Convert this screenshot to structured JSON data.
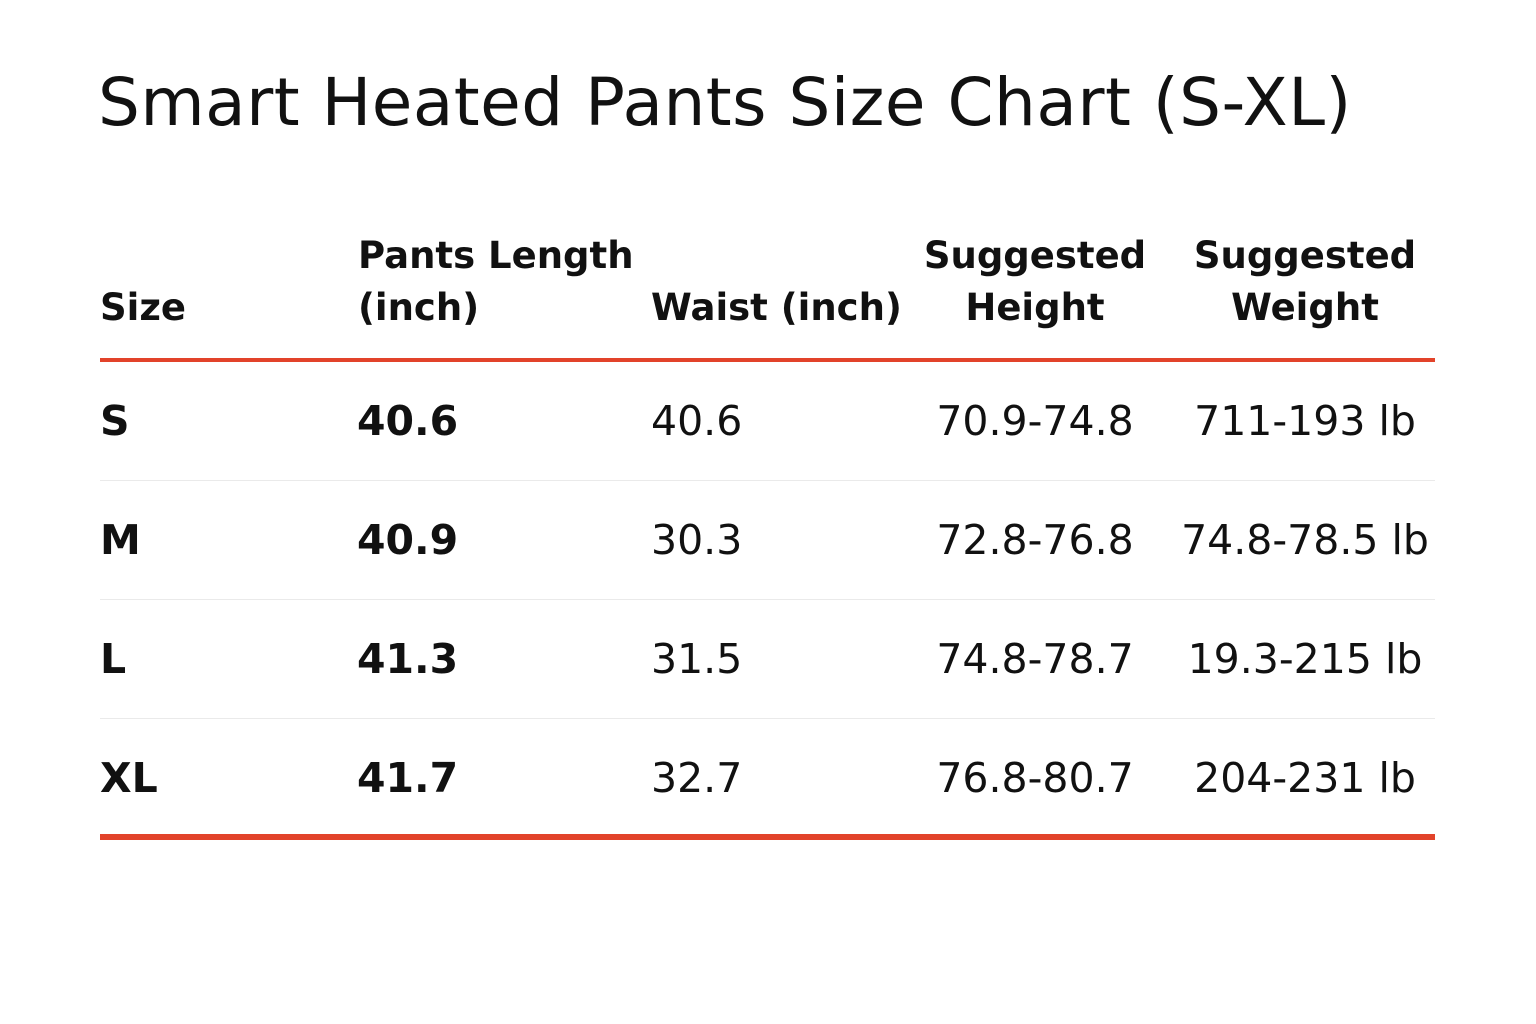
{
  "title": "Smart Heated Pants Size Chart (S-XL)",
  "accent_color": "#e2432a",
  "headers": {
    "size": "Size",
    "length_line1": "Pants Length",
    "length_line2": "(inch)",
    "waist": "Waist (inch)",
    "height_line1": "Suggested",
    "height_line2": "Height",
    "weight_line1": "Suggested",
    "weight_line2": "Weight"
  },
  "rows": [
    {
      "size": "S",
      "length": "40.6",
      "waist": "40.6",
      "height": "70.9-74.8",
      "weight": "711-193 lb"
    },
    {
      "size": "M",
      "length": "40.9",
      "waist": "30.3",
      "height": "72.8-76.8",
      "weight": "74.8-78.5 lb"
    },
    {
      "size": "L",
      "length": "41.3",
      "waist": "31.5",
      "height": "74.8-78.7",
      "weight": "19.3-215 lb"
    },
    {
      "size": "XL",
      "length": "41.7",
      "waist": "32.7",
      "height": "76.8-80.7",
      "weight": "204-231 lb"
    }
  ]
}
